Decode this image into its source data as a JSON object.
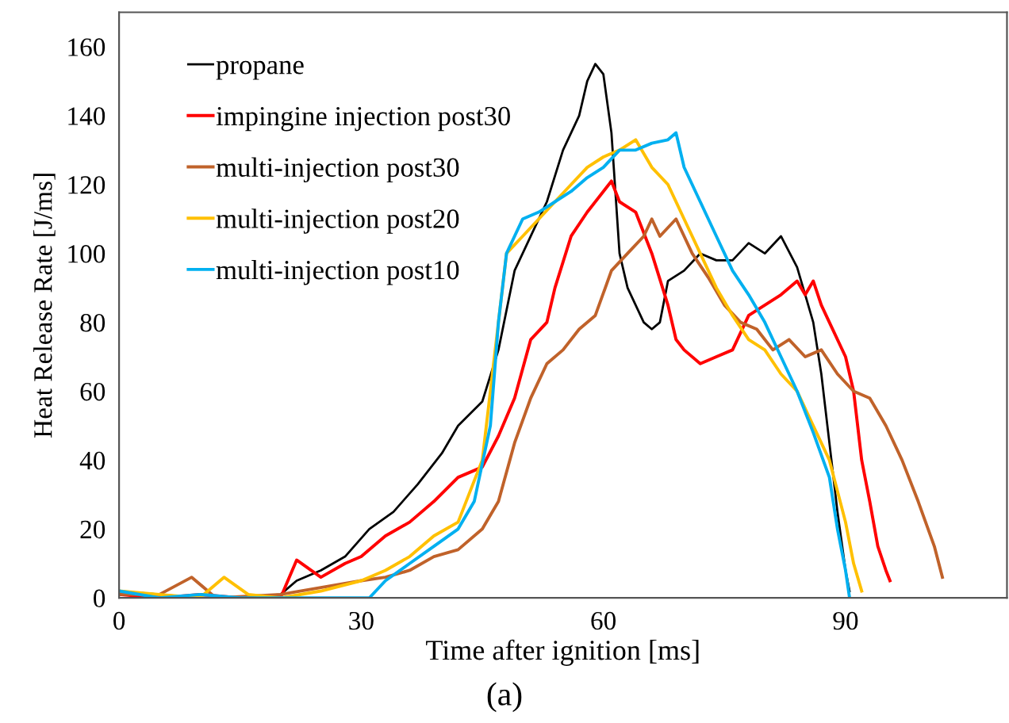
{
  "chart_data": {
    "type": "line",
    "xlabel": "Time after ignition [ms]",
    "ylabel": "Heat Release Rate [J/ms]",
    "annotations": [
      "(a)"
    ],
    "xlim": [
      0,
      110
    ],
    "ylim": [
      0,
      170
    ],
    "xticks": [
      0,
      30,
      60,
      90
    ],
    "yticks": [
      0,
      20,
      40,
      60,
      80,
      100,
      120,
      140,
      160
    ],
    "grid": false,
    "legend": "top left",
    "marker": "none",
    "line_style": "solid",
    "series": [
      {
        "name": "propane",
        "color": "#000000",
        "x": [
          0,
          5,
          10,
          15,
          20,
          22,
          25,
          28,
          31,
          34,
          37,
          40,
          42,
          45,
          47,
          49,
          51,
          53,
          55,
          57,
          58,
          59,
          60,
          61,
          62,
          63,
          64,
          65,
          66,
          67,
          68,
          70,
          72,
          74,
          76,
          78,
          80,
          82,
          84,
          86,
          87,
          88,
          89,
          90,
          90.5
        ],
        "values": [
          2,
          1,
          0,
          0,
          1,
          5,
          8,
          12,
          20,
          25,
          33,
          42,
          50,
          57,
          72,
          95,
          105,
          115,
          130,
          140,
          150,
          155,
          152,
          135,
          100,
          90,
          85,
          80,
          78,
          80,
          92,
          95,
          100,
          98,
          98,
          103,
          100,
          105,
          96,
          80,
          65,
          45,
          25,
          8,
          2
        ]
      },
      {
        "name": "impingine injection post30",
        "color": "#ff0000",
        "x": [
          0,
          5,
          10,
          15,
          20,
          22,
          25,
          28,
          30,
          33,
          36,
          39,
          42,
          45,
          47,
          49,
          51,
          53,
          54,
          56,
          58,
          60,
          61,
          62,
          64,
          66,
          68,
          69,
          70,
          72,
          74,
          76,
          78,
          80,
          82,
          84,
          85,
          86,
          87,
          88,
          90,
          91,
          92,
          93,
          94,
          95,
          95.5
        ],
        "values": [
          1,
          0,
          1,
          0,
          0,
          11,
          6,
          10,
          12,
          18,
          22,
          28,
          35,
          38,
          47,
          58,
          75,
          80,
          90,
          105,
          112,
          118,
          121,
          115,
          112,
          100,
          85,
          75,
          72,
          68,
          70,
          72,
          82,
          85,
          88,
          92,
          88,
          92,
          85,
          80,
          70,
          60,
          40,
          28,
          15,
          8,
          5
        ]
      },
      {
        "name": "multi-injection post30",
        "color": "#c0622a",
        "x": [
          0,
          5,
          9,
          12,
          20,
          25,
          30,
          33,
          36,
          39,
          42,
          45,
          47,
          49,
          51,
          53,
          55,
          57,
          59,
          61,
          63,
          65,
          66,
          67,
          69,
          71,
          73,
          75,
          77,
          79,
          81,
          83,
          85,
          87,
          89,
          91,
          93,
          95,
          97,
          99,
          101,
          102
        ],
        "values": [
          1,
          1,
          6,
          0,
          1,
          3,
          5,
          6,
          8,
          12,
          14,
          20,
          28,
          45,
          58,
          68,
          72,
          78,
          82,
          95,
          100,
          105,
          110,
          105,
          110,
          100,
          93,
          85,
          80,
          78,
          72,
          75,
          70,
          72,
          65,
          60,
          58,
          50,
          40,
          28,
          15,
          6
        ]
      },
      {
        "name": "multi-injection post20",
        "color": "#ffc000",
        "x": [
          0,
          5,
          10,
          13,
          16,
          20,
          25,
          30,
          33,
          36,
          39,
          42,
          45,
          46,
          47,
          48,
          50,
          52,
          54,
          56,
          58,
          60,
          62,
          64,
          66,
          68,
          70,
          72,
          74,
          76,
          78,
          80,
          82,
          84,
          86,
          88,
          90,
          91,
          92
        ],
        "values": [
          2,
          1,
          0,
          6,
          1,
          0,
          2,
          5,
          8,
          12,
          18,
          22,
          40,
          60,
          80,
          100,
          105,
          110,
          115,
          120,
          125,
          128,
          130,
          133,
          125,
          120,
          110,
          100,
          90,
          82,
          75,
          72,
          65,
          60,
          50,
          40,
          22,
          10,
          2
        ]
      },
      {
        "name": "multi-injection post10",
        "color": "#00b0f0",
        "x": [
          0,
          5,
          10,
          15,
          20,
          25,
          31,
          33,
          36,
          39,
          42,
          44,
          46,
          47,
          48,
          50,
          52,
          54,
          56,
          58,
          60,
          62,
          64,
          66,
          68,
          69,
          70,
          72,
          74,
          76,
          78,
          80,
          82,
          84,
          86,
          88,
          89,
          90,
          90.5
        ],
        "values": [
          2,
          0,
          1,
          0,
          0,
          0,
          0,
          5,
          10,
          15,
          20,
          28,
          50,
          80,
          100,
          110,
          112,
          115,
          118,
          122,
          125,
          130,
          130,
          132,
          133,
          135,
          125,
          115,
          105,
          95,
          88,
          80,
          70,
          60,
          48,
          35,
          20,
          8,
          0
        ]
      }
    ]
  }
}
